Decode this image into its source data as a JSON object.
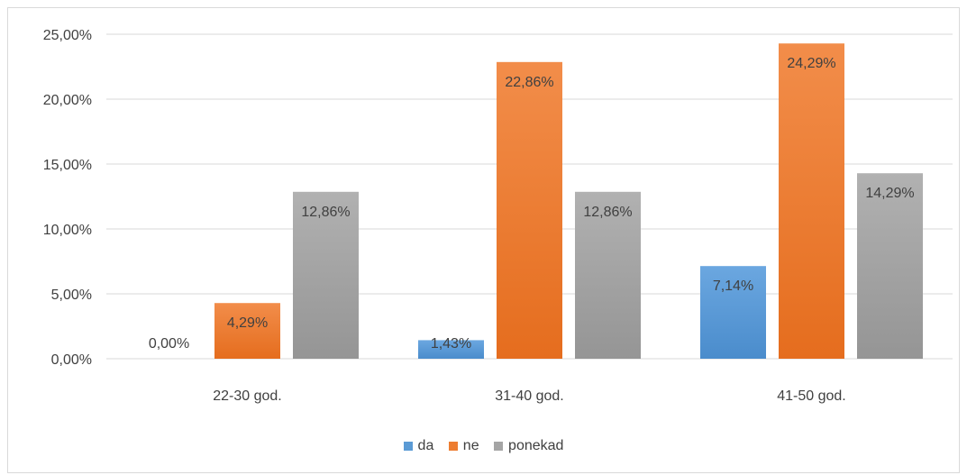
{
  "chart_data": {
    "type": "bar",
    "title": "",
    "categories": [
      "22-30 god.",
      "31-40 god.",
      "41-50 god."
    ],
    "series": [
      {
        "name": "da",
        "values": [
          0.0,
          1.43,
          7.14
        ],
        "labels": [
          "0,00%",
          "1,43%",
          "7,14%"
        ],
        "color": "#5b9bd5"
      },
      {
        "name": "ne",
        "values": [
          4.29,
          22.86,
          24.29
        ],
        "labels": [
          "4,29%",
          "22,86%",
          "24,29%"
        ],
        "color": "#ed7d31"
      },
      {
        "name": "ponekad",
        "values": [
          12.86,
          12.86,
          14.29
        ],
        "labels": [
          "12,86%",
          "12,86%",
          "14,29%"
        ],
        "color": "#a5a5a5"
      }
    ],
    "yticks": [
      "0,00%",
      "5,00%",
      "10,00%",
      "15,00%",
      "20,00%",
      "25,00%"
    ],
    "ylim": [
      0,
      25
    ],
    "xlabel": "",
    "ylabel": "",
    "grid": true,
    "legend": "bottom"
  }
}
